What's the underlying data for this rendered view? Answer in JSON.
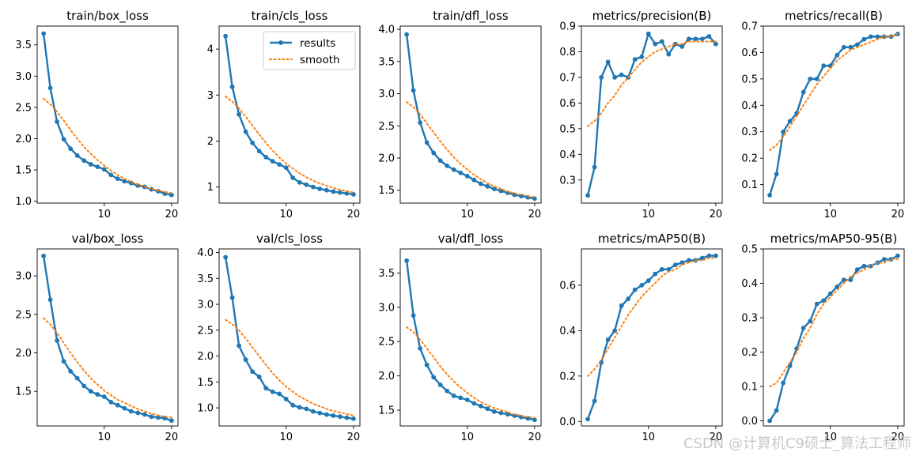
{
  "legend": {
    "results": "results",
    "smooth": "smooth"
  },
  "colors": {
    "results": "#1f77b4",
    "smooth": "#ff7f0e",
    "axis": "#000000",
    "background": "#ffffff"
  },
  "watermark": "CSDN @计算机C9硕士_算法工程师",
  "chart_data": [
    {
      "type": "line",
      "title": "train/box_loss",
      "xlim": [
        0.05,
        20.95
      ],
      "ylim": [
        0.97,
        3.8
      ],
      "xticks": [
        10,
        20
      ],
      "yticks": [
        1.0,
        1.5,
        2.0,
        2.5,
        3.0,
        3.5
      ],
      "x": [
        1,
        2,
        3,
        4,
        5,
        6,
        7,
        8,
        9,
        10,
        11,
        12,
        13,
        14,
        15,
        16,
        17,
        18,
        19,
        20
      ],
      "series": [
        {
          "name": "results",
          "values": [
            3.68,
            2.81,
            2.27,
            1.99,
            1.84,
            1.73,
            1.65,
            1.59,
            1.55,
            1.51,
            1.42,
            1.36,
            1.32,
            1.29,
            1.25,
            1.23,
            1.19,
            1.16,
            1.12,
            1.1
          ]
        },
        {
          "name": "smooth",
          "values": [
            2.64,
            2.55,
            2.43,
            2.29,
            2.14,
            2.0,
            1.87,
            1.76,
            1.66,
            1.57,
            1.49,
            1.42,
            1.36,
            1.31,
            1.27,
            1.23,
            1.2,
            1.17,
            1.15,
            1.13
          ]
        }
      ],
      "legend": false
    },
    {
      "type": "line",
      "title": "train/cls_loss",
      "xlim": [
        0.05,
        20.95
      ],
      "ylim": [
        0.65,
        4.5
      ],
      "xticks": [
        10,
        20
      ],
      "yticks": [
        1,
        2,
        3,
        4
      ],
      "x": [
        1,
        2,
        3,
        4,
        5,
        6,
        7,
        8,
        9,
        10,
        11,
        12,
        13,
        14,
        15,
        16,
        17,
        18,
        19,
        20
      ],
      "series": [
        {
          "name": "results",
          "values": [
            4.28,
            3.18,
            2.58,
            2.2,
            1.96,
            1.78,
            1.65,
            1.56,
            1.49,
            1.42,
            1.2,
            1.1,
            1.05,
            1.0,
            0.96,
            0.93,
            0.9,
            0.88,
            0.86,
            0.84
          ]
        },
        {
          "name": "smooth",
          "values": [
            2.97,
            2.86,
            2.71,
            2.53,
            2.34,
            2.14,
            1.96,
            1.79,
            1.64,
            1.51,
            1.4,
            1.3,
            1.21,
            1.14,
            1.08,
            1.03,
            0.98,
            0.94,
            0.91,
            0.88
          ]
        }
      ],
      "legend": true
    },
    {
      "type": "line",
      "title": "train/dfl_loss",
      "xlim": [
        0.05,
        20.95
      ],
      "ylim": [
        1.3,
        4.05
      ],
      "xticks": [
        10,
        20
      ],
      "yticks": [
        1.5,
        2.0,
        2.5,
        3.0,
        3.5,
        4.0
      ],
      "x": [
        1,
        2,
        3,
        4,
        5,
        6,
        7,
        8,
        9,
        10,
        11,
        12,
        13,
        14,
        15,
        16,
        17,
        18,
        19,
        20
      ],
      "series": [
        {
          "name": "results",
          "values": [
            3.92,
            3.05,
            2.55,
            2.24,
            2.08,
            1.96,
            1.88,
            1.82,
            1.77,
            1.72,
            1.66,
            1.6,
            1.56,
            1.52,
            1.49,
            1.46,
            1.43,
            1.41,
            1.39,
            1.37
          ]
        },
        {
          "name": "smooth",
          "values": [
            2.87,
            2.79,
            2.68,
            2.54,
            2.4,
            2.26,
            2.13,
            2.01,
            1.91,
            1.82,
            1.74,
            1.67,
            1.61,
            1.56,
            1.52,
            1.48,
            1.45,
            1.43,
            1.41,
            1.39
          ]
        }
      ],
      "legend": false
    },
    {
      "type": "line",
      "title": "metrics/precision(B)",
      "xlim": [
        0.05,
        20.95
      ],
      "ylim": [
        0.21,
        0.9
      ],
      "xticks": [
        10,
        20
      ],
      "yticks": [
        0.3,
        0.4,
        0.5,
        0.6,
        0.7,
        0.8,
        0.9
      ],
      "x": [
        1,
        2,
        3,
        4,
        5,
        6,
        7,
        8,
        9,
        10,
        11,
        12,
        13,
        14,
        15,
        16,
        17,
        18,
        19,
        20
      ],
      "series": [
        {
          "name": "results",
          "values": [
            0.24,
            0.35,
            0.7,
            0.76,
            0.7,
            0.71,
            0.7,
            0.77,
            0.78,
            0.87,
            0.83,
            0.84,
            0.79,
            0.83,
            0.82,
            0.85,
            0.85,
            0.85,
            0.86,
            0.83
          ]
        },
        {
          "name": "smooth",
          "values": [
            0.51,
            0.53,
            0.56,
            0.6,
            0.63,
            0.67,
            0.7,
            0.73,
            0.76,
            0.78,
            0.8,
            0.81,
            0.82,
            0.83,
            0.83,
            0.84,
            0.84,
            0.84,
            0.84,
            0.84
          ]
        }
      ],
      "legend": false
    },
    {
      "type": "line",
      "title": "metrics/recall(B)",
      "xlim": [
        0.05,
        20.95
      ],
      "ylim": [
        0.03,
        0.7
      ],
      "xticks": [
        10,
        20
      ],
      "yticks": [
        0.1,
        0.2,
        0.3,
        0.4,
        0.5,
        0.6,
        0.7
      ],
      "x": [
        1,
        2,
        3,
        4,
        5,
        6,
        7,
        8,
        9,
        10,
        11,
        12,
        13,
        14,
        15,
        16,
        17,
        18,
        19,
        20
      ],
      "series": [
        {
          "name": "results",
          "values": [
            0.06,
            0.14,
            0.3,
            0.34,
            0.37,
            0.45,
            0.5,
            0.5,
            0.55,
            0.55,
            0.59,
            0.62,
            0.62,
            0.63,
            0.65,
            0.66,
            0.66,
            0.66,
            0.66,
            0.67
          ]
        },
        {
          "name": "smooth",
          "values": [
            0.23,
            0.25,
            0.28,
            0.32,
            0.36,
            0.4,
            0.44,
            0.48,
            0.51,
            0.54,
            0.57,
            0.59,
            0.61,
            0.62,
            0.63,
            0.64,
            0.65,
            0.66,
            0.66,
            0.67
          ]
        }
      ],
      "legend": false
    },
    {
      "type": "line",
      "title": "val/box_loss",
      "xlim": [
        0.05,
        20.95
      ],
      "ylim": [
        1.05,
        3.35
      ],
      "xticks": [
        10,
        20
      ],
      "yticks": [
        1.5,
        2.0,
        2.5,
        3.0
      ],
      "x": [
        1,
        2,
        3,
        4,
        5,
        6,
        7,
        8,
        9,
        10,
        11,
        12,
        13,
        14,
        15,
        16,
        17,
        18,
        19,
        20
      ],
      "series": [
        {
          "name": "results",
          "values": [
            3.26,
            2.69,
            2.16,
            1.89,
            1.76,
            1.67,
            1.57,
            1.5,
            1.46,
            1.43,
            1.36,
            1.32,
            1.28,
            1.24,
            1.22,
            1.2,
            1.17,
            1.16,
            1.15,
            1.12
          ]
        },
        {
          "name": "smooth",
          "values": [
            2.45,
            2.37,
            2.26,
            2.13,
            2.0,
            1.88,
            1.77,
            1.67,
            1.59,
            1.51,
            1.45,
            1.39,
            1.35,
            1.31,
            1.27,
            1.24,
            1.21,
            1.19,
            1.17,
            1.16
          ]
        }
      ],
      "legend": false
    },
    {
      "type": "line",
      "title": "val/cls_loss",
      "xlim": [
        0.05,
        20.95
      ],
      "ylim": [
        0.65,
        4.07
      ],
      "xticks": [
        10,
        20
      ],
      "yticks": [
        1.0,
        1.5,
        2.0,
        2.5,
        3.0,
        3.5,
        4.0
      ],
      "x": [
        1,
        2,
        3,
        4,
        5,
        6,
        7,
        8,
        9,
        10,
        11,
        12,
        13,
        14,
        15,
        16,
        17,
        18,
        19,
        20
      ],
      "series": [
        {
          "name": "results",
          "values": [
            3.91,
            3.13,
            2.2,
            1.93,
            1.7,
            1.6,
            1.38,
            1.31,
            1.27,
            1.17,
            1.05,
            1.01,
            0.98,
            0.93,
            0.9,
            0.87,
            0.85,
            0.83,
            0.81,
            0.79
          ]
        },
        {
          "name": "smooth",
          "values": [
            2.7,
            2.62,
            2.5,
            2.34,
            2.17,
            2.0,
            1.83,
            1.67,
            1.53,
            1.41,
            1.31,
            1.22,
            1.15,
            1.08,
            1.03,
            0.98,
            0.94,
            0.91,
            0.88,
            0.85
          ]
        }
      ],
      "legend": false
    },
    {
      "type": "line",
      "title": "val/dfl_loss",
      "xlim": [
        0.05,
        20.95
      ],
      "ylim": [
        1.27,
        3.85
      ],
      "xticks": [
        10,
        20
      ],
      "yticks": [
        1.5,
        2.0,
        2.5,
        3.0,
        3.5
      ],
      "x": [
        1,
        2,
        3,
        4,
        5,
        6,
        7,
        8,
        9,
        10,
        11,
        12,
        13,
        14,
        15,
        16,
        17,
        18,
        19,
        20
      ],
      "series": [
        {
          "name": "results",
          "values": [
            3.68,
            2.88,
            2.4,
            2.16,
            1.98,
            1.87,
            1.78,
            1.71,
            1.68,
            1.65,
            1.6,
            1.56,
            1.52,
            1.48,
            1.46,
            1.44,
            1.42,
            1.4,
            1.38,
            1.36
          ]
        },
        {
          "name": "smooth",
          "values": [
            2.71,
            2.64,
            2.53,
            2.4,
            2.27,
            2.14,
            2.02,
            1.92,
            1.83,
            1.75,
            1.68,
            1.62,
            1.57,
            1.53,
            1.5,
            1.47,
            1.44,
            1.42,
            1.4,
            1.39
          ]
        }
      ],
      "legend": false
    },
    {
      "type": "line",
      "title": "metrics/mAP50(B)",
      "xlim": [
        0.05,
        20.95
      ],
      "ylim": [
        -0.02,
        0.76
      ],
      "xticks": [
        10,
        20
      ],
      "yticks": [
        0.0,
        0.2,
        0.4,
        0.6
      ],
      "x": [
        1,
        2,
        3,
        4,
        5,
        6,
        7,
        8,
        9,
        10,
        11,
        12,
        13,
        14,
        15,
        16,
        17,
        18,
        19,
        20
      ],
      "series": [
        {
          "name": "results",
          "values": [
            0.01,
            0.09,
            0.26,
            0.36,
            0.4,
            0.51,
            0.54,
            0.58,
            0.6,
            0.62,
            0.65,
            0.67,
            0.67,
            0.69,
            0.7,
            0.71,
            0.71,
            0.72,
            0.73,
            0.73
          ]
        },
        {
          "name": "smooth",
          "values": [
            0.2,
            0.23,
            0.27,
            0.32,
            0.37,
            0.42,
            0.47,
            0.51,
            0.55,
            0.58,
            0.61,
            0.64,
            0.66,
            0.67,
            0.69,
            0.7,
            0.71,
            0.71,
            0.72,
            0.72
          ]
        }
      ],
      "legend": false
    },
    {
      "type": "line",
      "title": "metrics/mAP50-95(B)",
      "xlim": [
        0.05,
        20.95
      ],
      "ylim": [
        -0.015,
        0.5
      ],
      "xticks": [
        10,
        20
      ],
      "yticks": [
        0.0,
        0.1,
        0.2,
        0.3,
        0.4,
        0.5
      ],
      "x": [
        1,
        2,
        3,
        4,
        5,
        6,
        7,
        8,
        9,
        10,
        11,
        12,
        13,
        14,
        15,
        16,
        17,
        18,
        19,
        20
      ],
      "series": [
        {
          "name": "results",
          "values": [
            0.0,
            0.03,
            0.11,
            0.16,
            0.21,
            0.27,
            0.29,
            0.34,
            0.35,
            0.37,
            0.39,
            0.41,
            0.41,
            0.44,
            0.45,
            0.45,
            0.46,
            0.47,
            0.47,
            0.48
          ]
        },
        {
          "name": "smooth",
          "values": [
            0.1,
            0.11,
            0.14,
            0.17,
            0.2,
            0.24,
            0.27,
            0.31,
            0.34,
            0.36,
            0.38,
            0.4,
            0.42,
            0.43,
            0.44,
            0.45,
            0.46,
            0.46,
            0.47,
            0.47
          ]
        }
      ],
      "legend": false
    }
  ]
}
